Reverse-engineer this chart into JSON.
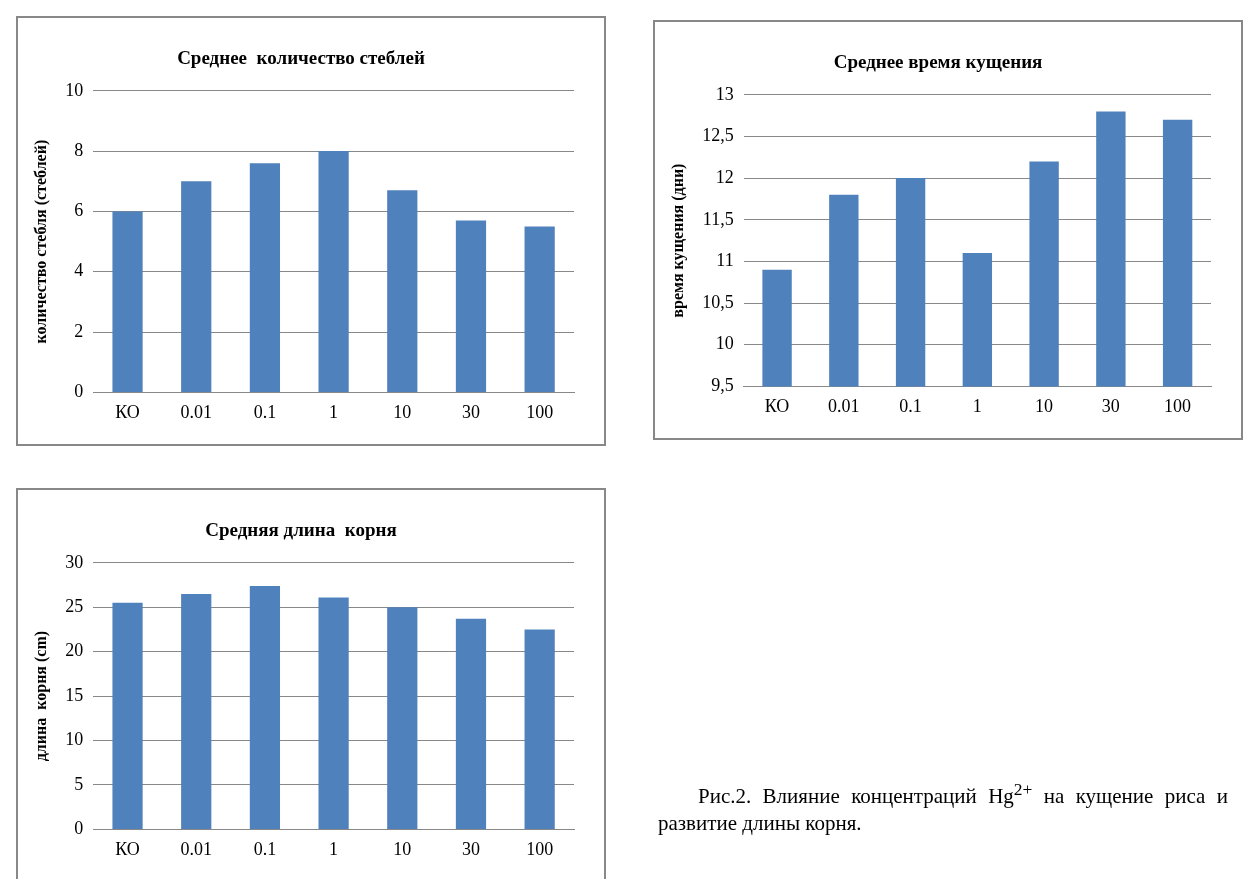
{
  "chart_data": [
    {
      "type": "bar",
      "title": "Среднее  количество стеблей",
      "ylabel": "количество стебля (стеблей)",
      "categories": [
        "КО",
        "0.01",
        "0.1",
        "1",
        "10",
        "30",
        "100"
      ],
      "values": [
        6,
        7,
        7.6,
        8,
        6.7,
        5.7,
        5.5
      ],
      "color": "#4f81bd",
      "ylim": [
        0,
        10
      ],
      "yticks": [
        0,
        2,
        4,
        6,
        8,
        10
      ],
      "grid": "y"
    },
    {
      "type": "bar",
      "title": "Среднее время кущения",
      "ylabel": "время кущения (дни)",
      "categories": [
        "КО",
        "0.01",
        "0.1",
        "1",
        "10",
        "30",
        "100"
      ],
      "values": [
        10.9,
        11.8,
        12,
        11.1,
        12.2,
        12.8,
        12.7
      ],
      "color": "#4f81bd",
      "ylim": [
        9.5,
        13
      ],
      "yticks": [
        {
          "value": 9.5,
          "label": "9,5"
        },
        10,
        {
          "value": 10.5,
          "label": "10,5"
        },
        11,
        {
          "value": 11.5,
          "label": "11,5"
        },
        12,
        {
          "value": 12.5,
          "label": "12,5"
        },
        13
      ],
      "grid": "y"
    },
    {
      "type": "bar",
      "title": "Средняя длина  корня",
      "ylabel": "длина  корня (cm)",
      "categories": [
        "КО",
        "0.01",
        "0.1",
        "1",
        "10",
        "30",
        "100"
      ],
      "values": [
        25.5,
        26.5,
        27.4,
        26.1,
        25,
        23.7,
        22.5
      ],
      "color": "#4f81bd",
      "ylim": [
        0,
        30
      ],
      "yticks": [
        0,
        5,
        10,
        15,
        20,
        25,
        30
      ],
      "grid": "y"
    },
    {
      "type": "other",
      "annotations": [
        "Рис.2. Влияние концентраций Hg$^{2+}$ на кущение риса и развитие длины корня."
      ]
    }
  ]
}
